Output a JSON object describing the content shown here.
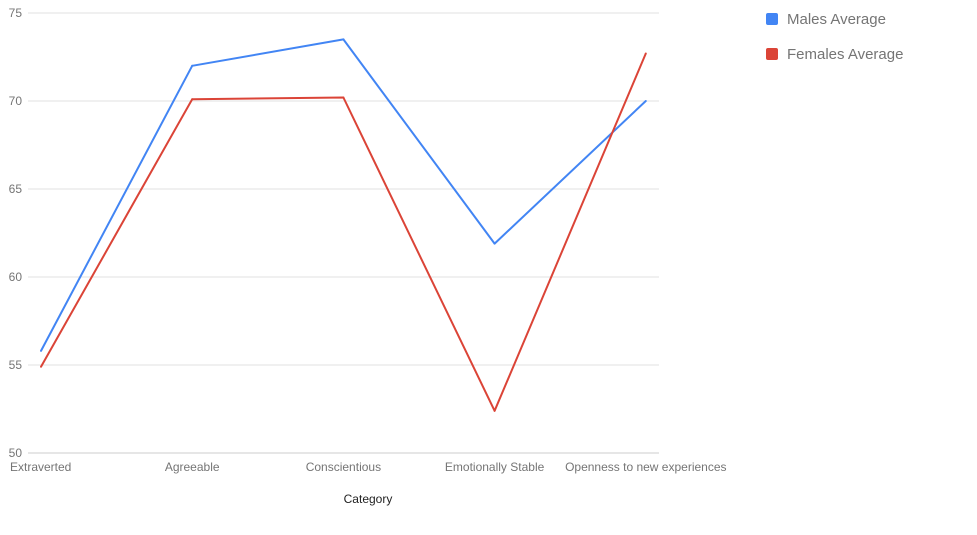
{
  "chart_data": {
    "type": "line",
    "categories": [
      "Extraverted",
      "Agreeable",
      "Conscientious",
      "Emotionally Stable",
      "Openness to new experiences"
    ],
    "series": [
      {
        "name": "Males Average",
        "color": "#4285f4",
        "values": [
          55.8,
          72.0,
          73.5,
          61.9,
          70.0
        ]
      },
      {
        "name": "Females Average",
        "color": "#db4437",
        "values": [
          54.9,
          70.1,
          70.2,
          52.4,
          72.7
        ]
      }
    ],
    "xlabel": "Category",
    "ylabel": "",
    "ylim": [
      50,
      75
    ],
    "yticks": [
      "50",
      "55",
      "60",
      "65",
      "70",
      "75"
    ],
    "grid": true,
    "legend": "right"
  }
}
